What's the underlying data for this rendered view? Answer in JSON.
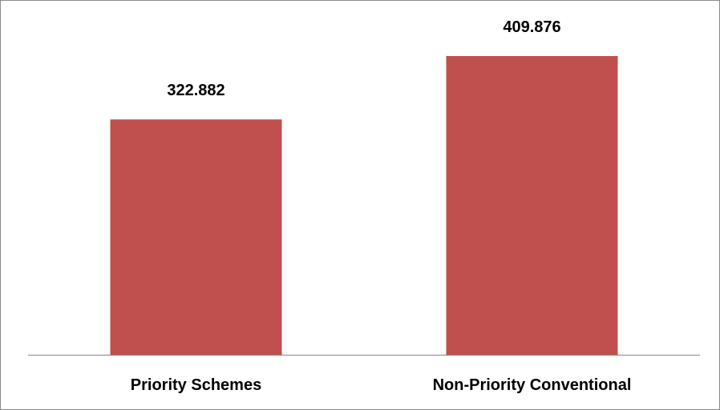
{
  "chart_data": {
    "type": "bar",
    "categories": [
      "Priority Schemes",
      "Non-Priority Conventional"
    ],
    "values": [
      322.882,
      409.876
    ],
    "value_labels": [
      "322.882",
      "409.876"
    ],
    "title": "",
    "xlabel": "",
    "ylabel": "",
    "ylim": [
      0,
      450
    ],
    "grid": false,
    "legend": "none",
    "colors": {
      "bar": "#C0504D",
      "axis": "#868686",
      "border": "#8c8c8c"
    }
  }
}
